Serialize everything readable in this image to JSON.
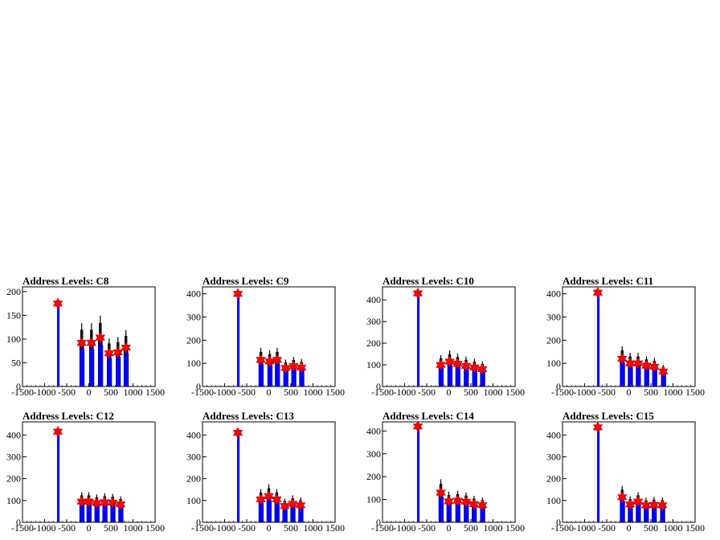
{
  "chart_data": [
    {
      "type": "histogram",
      "title": "Address Levels: C8",
      "xlim": [
        -1500,
        1500
      ],
      "ylim": [
        0,
        210
      ],
      "xticks": [
        -1500,
        -1000,
        -500,
        0,
        500,
        1000,
        1500
      ],
      "yticks": [
        0,
        50,
        100,
        150,
        200
      ],
      "markers": [
        {
          "x": -700,
          "y": 175
        },
        {
          "x": -160,
          "y": 92
        },
        {
          "x": 60,
          "y": 92
        },
        {
          "x": 260,
          "y": 103
        },
        {
          "x": 460,
          "y": 70
        },
        {
          "x": 660,
          "y": 72
        },
        {
          "x": 840,
          "y": 82
        }
      ]
    },
    {
      "type": "histogram",
      "title": "Address Levels: C9",
      "xlim": [
        -1500,
        1500
      ],
      "ylim": [
        0,
        430
      ],
      "xticks": [
        -1500,
        -1000,
        -500,
        0,
        500,
        1000,
        1500
      ],
      "yticks": [
        0,
        100,
        200,
        300,
        400
      ],
      "markers": [
        {
          "x": -700,
          "y": 400
        },
        {
          "x": -180,
          "y": 115
        },
        {
          "x": 20,
          "y": 108
        },
        {
          "x": 190,
          "y": 115
        },
        {
          "x": 380,
          "y": 80
        },
        {
          "x": 560,
          "y": 88
        },
        {
          "x": 740,
          "y": 82
        }
      ]
    },
    {
      "type": "histogram",
      "title": "Address Levels: C10",
      "xlim": [
        -1500,
        1500
      ],
      "ylim": [
        0,
        460
      ],
      "xticks": [
        -1500,
        -1000,
        -500,
        0,
        500,
        1000,
        1500
      ],
      "yticks": [
        0,
        100,
        200,
        300,
        400
      ],
      "markers": [
        {
          "x": -700,
          "y": 430
        },
        {
          "x": -180,
          "y": 100
        },
        {
          "x": 20,
          "y": 115
        },
        {
          "x": 200,
          "y": 105
        },
        {
          "x": 390,
          "y": 95
        },
        {
          "x": 580,
          "y": 88
        },
        {
          "x": 760,
          "y": 80
        }
      ]
    },
    {
      "type": "histogram",
      "title": "Address Levels: C11",
      "xlim": [
        -1500,
        1500
      ],
      "ylim": [
        0,
        430
      ],
      "xticks": [
        -1500,
        -1000,
        -500,
        0,
        500,
        1000,
        1500
      ],
      "yticks": [
        0,
        100,
        200,
        300,
        400
      ],
      "markers": [
        {
          "x": -700,
          "y": 405
        },
        {
          "x": -150,
          "y": 120
        },
        {
          "x": 30,
          "y": 100
        },
        {
          "x": 210,
          "y": 100
        },
        {
          "x": 400,
          "y": 90
        },
        {
          "x": 580,
          "y": 85
        },
        {
          "x": 780,
          "y": 65
        }
      ]
    },
    {
      "type": "histogram",
      "title": "Address Levels: C12",
      "xlim": [
        -1500,
        1500
      ],
      "ylim": [
        0,
        460
      ],
      "xticks": [
        -1500,
        -1000,
        -500,
        0,
        500,
        1000,
        1500
      ],
      "yticks": [
        0,
        100,
        200,
        300,
        400
      ],
      "markers": [
        {
          "x": -700,
          "y": 415
        },
        {
          "x": -160,
          "y": 95
        },
        {
          "x": 0,
          "y": 95
        },
        {
          "x": 180,
          "y": 88
        },
        {
          "x": 360,
          "y": 92
        },
        {
          "x": 540,
          "y": 90
        },
        {
          "x": 720,
          "y": 82
        }
      ]
    },
    {
      "type": "histogram",
      "title": "Address Levels: C13",
      "xlim": [
        -1500,
        1500
      ],
      "ylim": [
        0,
        460
      ],
      "xticks": [
        -1500,
        -1000,
        -500,
        0,
        500,
        1000,
        1500
      ],
      "yticks": [
        0,
        100,
        200,
        300,
        400
      ],
      "markers": [
        {
          "x": -700,
          "y": 410
        },
        {
          "x": -180,
          "y": 105
        },
        {
          "x": 0,
          "y": 120
        },
        {
          "x": 180,
          "y": 105
        },
        {
          "x": 360,
          "y": 75
        },
        {
          "x": 540,
          "y": 85
        },
        {
          "x": 720,
          "y": 78
        }
      ]
    },
    {
      "type": "histogram",
      "title": "Address Levels: C14",
      "xlim": [
        -1500,
        1500
      ],
      "ylim": [
        0,
        440
      ],
      "xticks": [
        -1500,
        -1000,
        -500,
        0,
        500,
        1000,
        1500
      ],
      "yticks": [
        0,
        100,
        200,
        300,
        400
      ],
      "markers": [
        {
          "x": -700,
          "y": 420
        },
        {
          "x": -180,
          "y": 130
        },
        {
          "x": 0,
          "y": 92
        },
        {
          "x": 200,
          "y": 95
        },
        {
          "x": 390,
          "y": 90
        },
        {
          "x": 570,
          "y": 80
        },
        {
          "x": 760,
          "y": 75
        }
      ]
    },
    {
      "type": "histogram",
      "title": "Address Levels: C15",
      "xlim": [
        -1500,
        1500
      ],
      "ylim": [
        0,
        460
      ],
      "xticks": [
        -1500,
        -1000,
        -500,
        0,
        500,
        1000,
        1500
      ],
      "yticks": [
        0,
        100,
        200,
        300,
        400
      ],
      "markers": [
        {
          "x": -700,
          "y": 435
        },
        {
          "x": -150,
          "y": 115
        },
        {
          "x": 30,
          "y": 82
        },
        {
          "x": 210,
          "y": 95
        },
        {
          "x": 390,
          "y": 78
        },
        {
          "x": 570,
          "y": 80
        },
        {
          "x": 760,
          "y": 78
        }
      ]
    }
  ],
  "colors": {
    "histogram_line": "#000000",
    "fit_line": "#0000ff",
    "marker": "#ff0000",
    "axis": "#000000"
  }
}
